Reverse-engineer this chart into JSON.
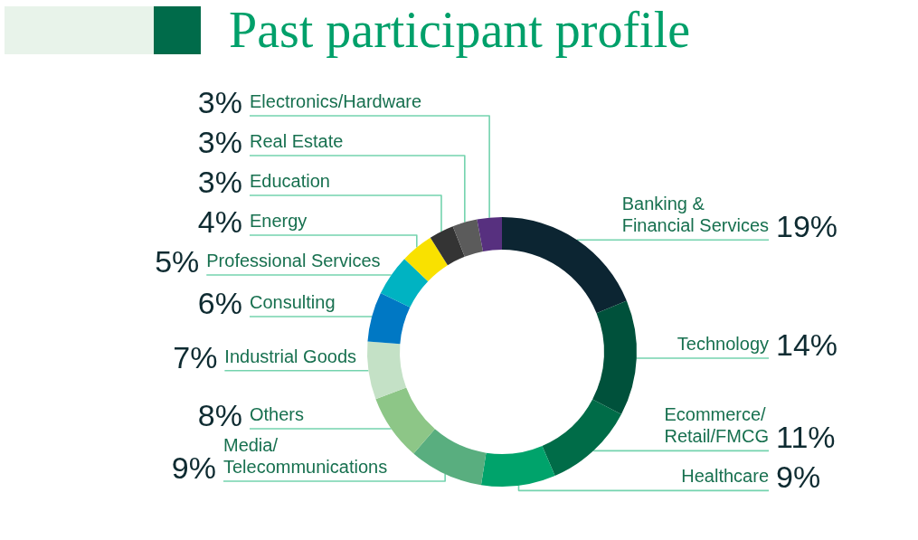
{
  "chart_data": {
    "type": "donut",
    "title": "Past participant profile",
    "categories": [
      "Banking &\nFinancial Services",
      "Technology",
      "Ecommerce/\nRetail/FMCG",
      "Healthcare",
      "Media/\nTelecommunications",
      "Others",
      "Industrial Goods",
      "Consulting",
      "Professional Services",
      "Energy",
      "Education",
      "Real Estate",
      "Electronics/Hardware"
    ],
    "values": [
      19,
      14,
      11,
      9,
      9,
      8,
      7,
      6,
      5,
      4,
      3,
      3,
      3
    ],
    "value_labels": [
      "19%",
      "14%",
      "11%",
      "9%",
      "9%",
      "8%",
      "7%",
      "6%",
      "5%",
      "4%",
      "3%",
      "3%",
      "3%"
    ],
    "colors": [
      "#0c2532",
      "#00513b",
      "#006c48",
      "#00a36b",
      "#59ae7f",
      "#8dc687",
      "#c4e1c6",
      "#0078c4",
      "#00b3c2",
      "#f9e100",
      "#343434",
      "#5b5b5b",
      "#57307f"
    ]
  }
}
